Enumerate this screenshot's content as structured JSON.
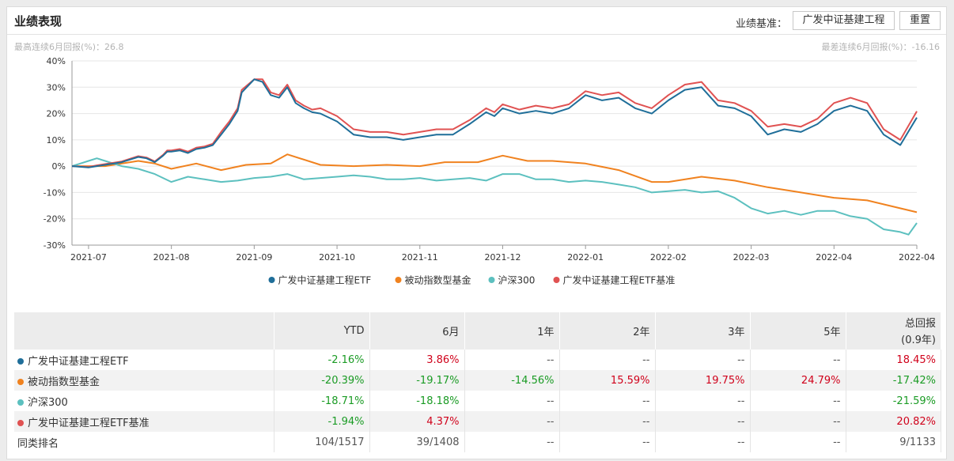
{
  "header": {
    "title": "业绩表现",
    "benchmark_label": "业绩基准：",
    "benchmark_value": "广发中证基建工程",
    "reset_label": "重置"
  },
  "notes": {
    "max_rally": "最高连续6月回报(%)：26.8",
    "max_drawdown": "最差连续6月回报(%)：-16.16"
  },
  "colors": {
    "etf": "#1f6e99",
    "passive": "#f0821f",
    "hs300": "#5cc0bf",
    "bench": "#e05252"
  },
  "chart_data": {
    "type": "line",
    "title": "",
    "xlabel": "",
    "ylabel": "",
    "ylim": [
      -30,
      40
    ],
    "grid": true,
    "y_ticks": [
      "40%",
      "30%",
      "20%",
      "10%",
      "0%",
      "-10%",
      "-20%",
      "-30%"
    ],
    "x_ticks": [
      "2021-07",
      "2021-08",
      "2021-09",
      "2021-10",
      "2021-11",
      "2021-12",
      "2022-01",
      "2022-02",
      "2022-03",
      "2022-04",
      "2022-04"
    ],
    "x_tick_pos": [
      0.2,
      1.2,
      2.2,
      3.2,
      4.2,
      5.2,
      6.2,
      7.2,
      8.2,
      9.2,
      10.2
    ],
    "x_range": [
      0,
      10.2
    ],
    "legend_position": "bottom",
    "series": [
      {
        "name": "广发中证基建工程ETF",
        "key": "etf",
        "x": [
          0,
          0.2,
          0.3,
          0.4,
          0.5,
          0.6,
          0.7,
          0.8,
          0.9,
          1.0,
          1.1,
          1.15,
          1.2,
          1.3,
          1.4,
          1.5,
          1.6,
          1.7,
          1.8,
          1.9,
          2.0,
          2.05,
          2.2,
          2.3,
          2.4,
          2.5,
          2.6,
          2.7,
          2.8,
          2.9,
          3.0,
          3.2,
          3.4,
          3.6,
          3.8,
          4.0,
          4.2,
          4.4,
          4.6,
          4.8,
          5.0,
          5.1,
          5.2,
          5.4,
          5.6,
          5.8,
          6.0,
          6.2,
          6.4,
          6.6,
          6.8,
          7.0,
          7.2,
          7.4,
          7.6,
          7.8,
          8.0,
          8.2,
          8.4,
          8.6,
          8.8,
          9.0,
          9.2,
          9.4,
          9.6,
          9.8,
          10.0,
          10.2
        ],
        "values": [
          0,
          -0.5,
          0,
          0.5,
          1,
          1.5,
          2.5,
          3.5,
          3,
          1.5,
          4,
          5.5,
          5.5,
          6,
          5,
          6.5,
          7,
          8,
          12,
          16,
          21,
          28,
          33,
          32,
          27,
          26,
          30,
          24,
          22,
          20.5,
          20,
          17,
          12,
          11,
          11,
          10,
          11,
          12,
          12,
          16,
          20.5,
          19,
          22,
          20,
          21,
          20,
          22,
          27,
          25,
          26,
          22,
          20,
          25,
          29,
          30,
          23,
          22,
          19,
          12,
          14,
          13,
          16,
          21,
          23,
          21,
          12,
          8,
          18.45
        ]
      },
      {
        "name": "被动指数型基金",
        "key": "passive",
        "x": [
          0,
          0.4,
          0.8,
          1.0,
          1.2,
          1.5,
          1.8,
          2.1,
          2.4,
          2.6,
          3.0,
          3.4,
          3.8,
          4.2,
          4.5,
          4.9,
          5.2,
          5.5,
          5.8,
          6.2,
          6.6,
          7.0,
          7.2,
          7.6,
          8.0,
          8.4,
          8.8,
          9.2,
          9.6,
          10.2
        ],
        "values": [
          0,
          0,
          2,
          1,
          -1,
          1,
          -1.5,
          0.5,
          1,
          4.5,
          0.5,
          0,
          0.5,
          0,
          1.5,
          1.5,
          4,
          2,
          2,
          1,
          -1.5,
          -6,
          -6,
          -4,
          -5.5,
          -8,
          -10,
          -12,
          -13,
          -17.5
        ]
      },
      {
        "name": "沪深300",
        "key": "hs300",
        "x": [
          0,
          0.1,
          0.2,
          0.3,
          0.4,
          0.5,
          0.6,
          0.8,
          1.0,
          1.2,
          1.4,
          1.6,
          1.8,
          2.0,
          2.2,
          2.4,
          2.6,
          2.8,
          3.0,
          3.2,
          3.4,
          3.6,
          3.8,
          4.0,
          4.2,
          4.4,
          4.6,
          4.8,
          5.0,
          5.2,
          5.4,
          5.6,
          5.8,
          6.0,
          6.2,
          6.4,
          6.6,
          6.8,
          7.0,
          7.2,
          7.4,
          7.6,
          7.8,
          8.0,
          8.2,
          8.4,
          8.6,
          8.8,
          9.0,
          9.2,
          9.4,
          9.6,
          9.8,
          10.0,
          10.1,
          10.2
        ],
        "values": [
          0,
          1,
          2,
          3,
          2,
          1,
          0,
          -1,
          -3,
          -6,
          -4,
          -5,
          -6,
          -5.5,
          -4.5,
          -4,
          -3,
          -5,
          -4.5,
          -4,
          -3.5,
          -4,
          -5,
          -5,
          -4.5,
          -5.5,
          -5,
          -4.5,
          -5.5,
          -3,
          -3,
          -5,
          -5,
          -6,
          -5.5,
          -6,
          -7,
          -8,
          -10,
          -9.5,
          -9,
          -10,
          -9.5,
          -12,
          -16,
          -18,
          -17,
          -18.5,
          -17,
          -17,
          -19,
          -20,
          -24,
          -25,
          -26,
          -21.59
        ]
      },
      {
        "name": "广发中证基建工程ETF基准",
        "key": "bench",
        "x": [
          0,
          0.2,
          0.3,
          0.4,
          0.5,
          0.6,
          0.7,
          0.8,
          0.9,
          1.0,
          1.1,
          1.15,
          1.2,
          1.3,
          1.4,
          1.5,
          1.6,
          1.7,
          1.8,
          1.9,
          2.0,
          2.05,
          2.2,
          2.3,
          2.4,
          2.5,
          2.6,
          2.7,
          2.8,
          2.9,
          3.0,
          3.2,
          3.4,
          3.6,
          3.8,
          4.0,
          4.2,
          4.4,
          4.6,
          4.8,
          5.0,
          5.1,
          5.2,
          5.4,
          5.6,
          5.8,
          6.0,
          6.2,
          6.4,
          6.6,
          6.8,
          7.0,
          7.2,
          7.4,
          7.6,
          7.8,
          8.0,
          8.2,
          8.4,
          8.6,
          8.8,
          9.0,
          9.2,
          9.4,
          9.6,
          9.8,
          10.0,
          10.2
        ],
        "values": [
          0,
          -0.3,
          0.3,
          0.8,
          1.3,
          1.8,
          2.8,
          3.8,
          3.3,
          1.8,
          4.3,
          6,
          6,
          6.5,
          5.5,
          7,
          7.5,
          8.5,
          13,
          17,
          22,
          29,
          33,
          33,
          28,
          27,
          31,
          25,
          23,
          21.5,
          22,
          19,
          14,
          13,
          13,
          12,
          13,
          14,
          14,
          17.5,
          22,
          20.5,
          23.5,
          21.5,
          23,
          22,
          23.5,
          28.5,
          27,
          28,
          24,
          22,
          27,
          31,
          32,
          25,
          24,
          21,
          15,
          16,
          15,
          18,
          24,
          26,
          24,
          14,
          10,
          20.82
        ]
      }
    ]
  },
  "table": {
    "headers": [
      "",
      "YTD",
      "6月",
      "1年",
      "2年",
      "3年",
      "5年",
      "总回报",
      "(0.9年)"
    ],
    "rows": [
      {
        "name": "广发中证基建工程ETF",
        "key": "etf",
        "values": [
          "-2.16%",
          "3.86%",
          "--",
          "--",
          "--",
          "--",
          "18.45%"
        ]
      },
      {
        "name": "被动指数型基金",
        "key": "passive",
        "values": [
          "-20.39%",
          "-19.17%",
          "-14.56%",
          "15.59%",
          "19.75%",
          "24.79%",
          "-17.42%"
        ]
      },
      {
        "name": "沪深300",
        "key": "hs300",
        "values": [
          "-18.71%",
          "-18.18%",
          "--",
          "--",
          "--",
          "--",
          "-21.59%"
        ]
      },
      {
        "name": "广发中证基建工程ETF基准",
        "key": "bench",
        "values": [
          "-1.94%",
          "4.37%",
          "--",
          "--",
          "--",
          "--",
          "20.82%"
        ]
      },
      {
        "name": "同类排名",
        "key": "",
        "values": [
          "104/1517",
          "39/1408",
          "--",
          "--",
          "--",
          "--",
          "9/1133"
        ]
      }
    ]
  }
}
